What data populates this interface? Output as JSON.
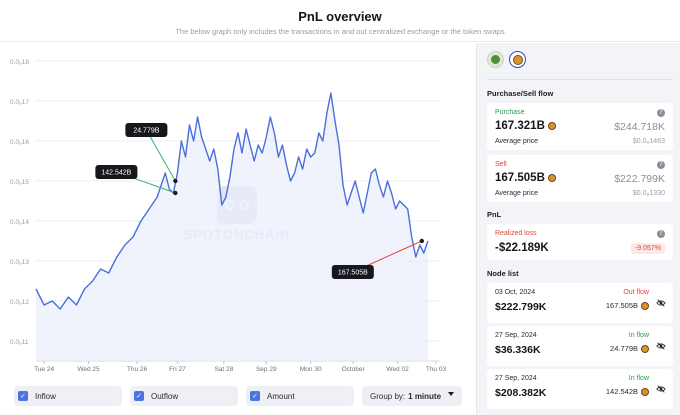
{
  "header": {
    "title": "PnL overview",
    "subtitle": "The below graph only includes the transactions in and out centralized exchange or the token swaps"
  },
  "chart_data": {
    "type": "line",
    "watermark": "SPOTONCHAIN",
    "y_ticks": [
      "0,0₈18",
      "0,0₈17",
      "0,0₈16",
      "0,0₈15",
      "0,0₈14",
      "0,0₈13",
      "0,0₈12",
      "0,0₈11"
    ],
    "x_ticks": [
      "Tue 24",
      "Wed 25",
      "Thu 26",
      "Fri 27",
      "Sat 28",
      "Sep 29",
      "Mon 30",
      "October",
      "Wed 02",
      "Thu 03"
    ],
    "ylim": [
      1.05e-08,
      1.82e-08
    ],
    "grid": true,
    "series": [
      {
        "color": "#4a6fdc",
        "points": [
          [
            0.0,
            1.23e-08
          ],
          [
            0.02,
            1.19e-08
          ],
          [
            0.04,
            1.2e-08
          ],
          [
            0.06,
            1.18e-08
          ],
          [
            0.08,
            1.21e-08
          ],
          [
            0.1,
            1.19e-08
          ],
          [
            0.12,
            1.23e-08
          ],
          [
            0.14,
            1.25e-08
          ],
          [
            0.16,
            1.28e-08
          ],
          [
            0.18,
            1.27e-08
          ],
          [
            0.2,
            1.31e-08
          ],
          [
            0.22,
            1.34e-08
          ],
          [
            0.24,
            1.36e-08
          ],
          [
            0.26,
            1.4e-08
          ],
          [
            0.28,
            1.43e-08
          ],
          [
            0.3,
            1.46e-08
          ],
          [
            0.31,
            1.49e-08
          ],
          [
            0.32,
            1.52e-08
          ],
          [
            0.33,
            1.48e-08
          ],
          [
            0.34,
            1.47e-08
          ],
          [
            0.35,
            1.52e-08
          ],
          [
            0.36,
            1.6e-08
          ],
          [
            0.37,
            1.56e-08
          ],
          [
            0.38,
            1.64e-08
          ],
          [
            0.39,
            1.6e-08
          ],
          [
            0.4,
            1.66e-08
          ],
          [
            0.41,
            1.61e-08
          ],
          [
            0.42,
            1.58e-08
          ],
          [
            0.43,
            1.55e-08
          ],
          [
            0.44,
            1.58e-08
          ],
          [
            0.45,
            1.53e-08
          ],
          [
            0.46,
            1.44e-08
          ],
          [
            0.47,
            1.46e-08
          ],
          [
            0.48,
            1.51e-08
          ],
          [
            0.49,
            1.58e-08
          ],
          [
            0.5,
            1.62e-08
          ],
          [
            0.51,
            1.57e-08
          ],
          [
            0.52,
            1.63e-08
          ],
          [
            0.53,
            1.59e-08
          ],
          [
            0.54,
            1.55e-08
          ],
          [
            0.55,
            1.59e-08
          ],
          [
            0.56,
            1.57e-08
          ],
          [
            0.57,
            1.61e-08
          ],
          [
            0.58,
            1.66e-08
          ],
          [
            0.59,
            1.62e-08
          ],
          [
            0.6,
            1.56e-08
          ],
          [
            0.61,
            1.59e-08
          ],
          [
            0.62,
            1.54e-08
          ],
          [
            0.63,
            1.5e-08
          ],
          [
            0.64,
            1.52e-08
          ],
          [
            0.65,
            1.56e-08
          ],
          [
            0.66,
            1.53e-08
          ],
          [
            0.67,
            1.58e-08
          ],
          [
            0.68,
            1.56e-08
          ],
          [
            0.69,
            1.57e-08
          ],
          [
            0.7,
            1.62e-08
          ],
          [
            0.71,
            1.6e-08
          ],
          [
            0.72,
            1.67e-08
          ],
          [
            0.73,
            1.72e-08
          ],
          [
            0.74,
            1.65e-08
          ],
          [
            0.75,
            1.59e-08
          ],
          [
            0.76,
            1.49e-08
          ],
          [
            0.77,
            1.44e-08
          ],
          [
            0.78,
            1.47e-08
          ],
          [
            0.79,
            1.5e-08
          ],
          [
            0.8,
            1.46e-08
          ],
          [
            0.81,
            1.42e-08
          ],
          [
            0.82,
            1.47e-08
          ],
          [
            0.83,
            1.52e-08
          ],
          [
            0.84,
            1.53e-08
          ],
          [
            0.85,
            1.49e-08
          ],
          [
            0.86,
            1.46e-08
          ],
          [
            0.87,
            1.5e-08
          ],
          [
            0.88,
            1.47e-08
          ],
          [
            0.89,
            1.43e-08
          ],
          [
            0.9,
            1.45e-08
          ],
          [
            0.92,
            1.43e-08
          ],
          [
            0.93,
            1.36e-08
          ],
          [
            0.94,
            1.31e-08
          ],
          [
            0.95,
            1.34e-08
          ],
          [
            0.96,
            1.32e-08
          ],
          [
            0.97,
            1.35e-08
          ]
        ]
      }
    ],
    "callouts": [
      {
        "label": "24.779B",
        "point_x": 0.345,
        "point_y": 1.5e-08,
        "color": "#38b36a"
      },
      {
        "label": "142.542B",
        "point_x": 0.345,
        "point_y": 1.47e-08,
        "color": "#38b36a"
      },
      {
        "label": "167.505B",
        "point_x": 0.955,
        "point_y": 1.35e-08,
        "color": "#e0473c"
      }
    ]
  },
  "controls": {
    "inflow": "Inflow",
    "outflow": "Outflow",
    "amount": "Amount",
    "group_label": "Group by:",
    "group_value": "1 minute"
  },
  "sidebar": {
    "tokens": [
      "pepe-token-icon",
      "floki-token-icon"
    ],
    "flow_title": "Purchase/Sell flow",
    "purchase": {
      "label": "Purchase",
      "amount": "167.321B",
      "usd": "$244.718K",
      "avg_label": "Average price",
      "avg_value": "$0.0₈1463"
    },
    "sell": {
      "label": "Sell",
      "amount": "167.505B",
      "usd": "$222.799K",
      "avg_label": "Average price",
      "avg_value": "$0.0₈1330"
    },
    "pnl_title": "PnL",
    "realized": {
      "label": "Realized loss",
      "amount": "-$22.189K",
      "pct": "-9.057%"
    },
    "node_title": "Node list",
    "nodes": [
      {
        "date": "03 Oct, 2024",
        "usd": "$222.799K",
        "flow": "Out flow",
        "tokens": "167.505B",
        "dir": "out"
      },
      {
        "date": "27 Sep, 2024",
        "usd": "$36.336K",
        "flow": "In flow",
        "tokens": "24.779B",
        "dir": "in"
      },
      {
        "date": "27 Sep, 2024",
        "usd": "$208.382K",
        "flow": "In flow",
        "tokens": "142.542B",
        "dir": "in"
      }
    ]
  },
  "colors": {
    "accent": "#4a74e6",
    "line": "#4a6fdc",
    "inflow": "#24a148",
    "outflow": "#e0473c"
  }
}
